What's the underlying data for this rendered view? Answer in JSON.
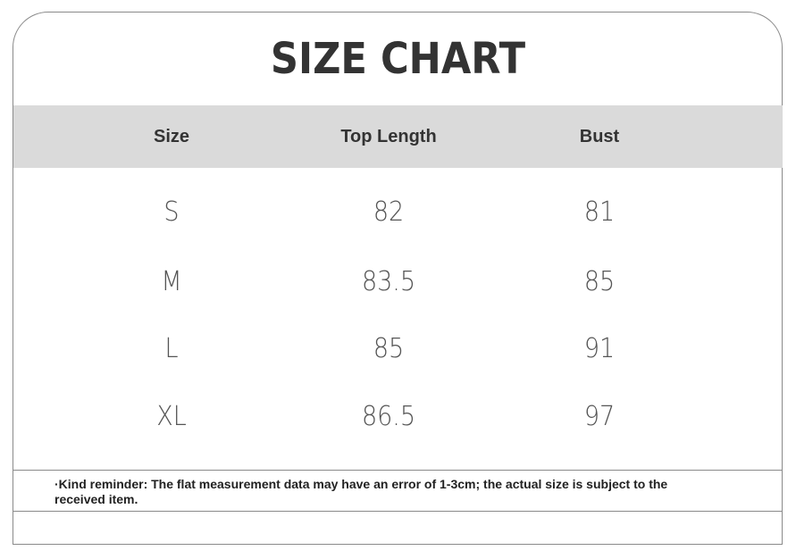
{
  "title": "SIZE CHART",
  "table": {
    "headers": [
      "Size",
      "Top Length",
      "Bust"
    ],
    "rows": [
      [
        "S",
        "82",
        "81"
      ],
      [
        "M",
        "83.5",
        "85"
      ],
      [
        "L",
        "85",
        "91"
      ],
      [
        "XL",
        "86.5",
        "97"
      ]
    ]
  },
  "note": "·Kind reminder: The flat measurement data may have an error of 1-3cm; the actual size is subject to the received item.",
  "colors": {
    "header_bg": "#dadada",
    "border": "#8a8a8a",
    "text": "#333333"
  }
}
